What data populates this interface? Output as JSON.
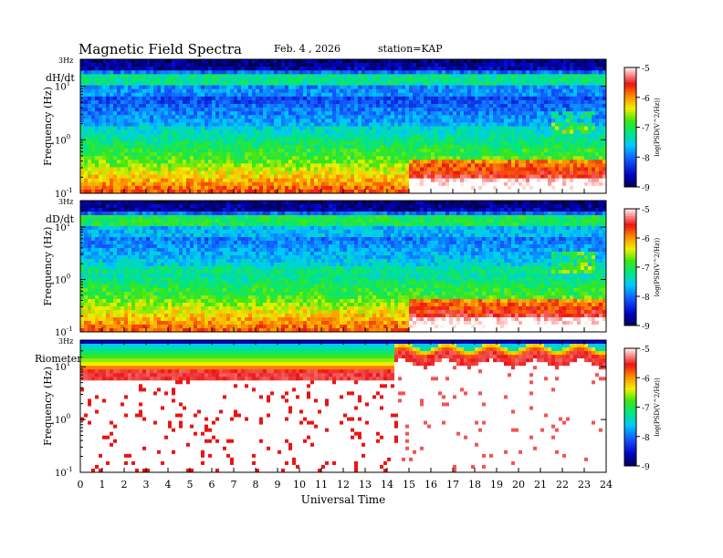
{
  "header": {
    "title": "Magnetic  Field  Spectra",
    "date": "Feb. 4  , 2026",
    "station": "station=KAP"
  },
  "chart_data": [
    {
      "type": "heatmap",
      "panel_label": "dH/dt",
      "ylabel": "Frequency  (Hz)",
      "xlabel": "",
      "top_label": "3Hz",
      "y_ticks": [
        {
          "base": "10",
          "exp": "-1",
          "value": 0.1
        },
        {
          "base": "10",
          "exp": "0",
          "value": 1
        },
        {
          "base": "10",
          "exp": "1",
          "value": 10
        }
      ],
      "ylim": [
        0.1,
        32
      ],
      "y_scale": "log",
      "xlim": [
        0,
        24
      ],
      "colorbar": {
        "label": "log(PSD(V^2/Hz))",
        "ticks": [
          "-5",
          "-6",
          "-7",
          "-8",
          "-9"
        ],
        "range": [
          -9,
          -5
        ]
      }
    },
    {
      "type": "heatmap",
      "panel_label": "dD/dt",
      "ylabel": "Frequency  (Hz)",
      "xlabel": "",
      "top_label": "3Hz",
      "y_ticks": [
        {
          "base": "10",
          "exp": "-1",
          "value": 0.1
        },
        {
          "base": "10",
          "exp": "0",
          "value": 1
        },
        {
          "base": "10",
          "exp": "1",
          "value": 10
        }
      ],
      "ylim": [
        0.1,
        32
      ],
      "y_scale": "log",
      "xlim": [
        0,
        24
      ],
      "colorbar": {
        "label": "log(PSD(V^2/Hz))",
        "ticks": [
          "-5",
          "-6",
          "-7",
          "-8",
          "-9"
        ],
        "range": [
          -9,
          -5
        ]
      }
    },
    {
      "type": "heatmap",
      "panel_label": "Riometer",
      "ylabel": "Frequency  (Hz)",
      "xlabel": "Universal Time",
      "top_label": "3Hz",
      "y_ticks": [
        {
          "base": "10",
          "exp": "-1",
          "value": 0.1
        },
        {
          "base": "10",
          "exp": "0",
          "value": 1
        },
        {
          "base": "10",
          "exp": "1",
          "value": 10
        }
      ],
      "ylim": [
        0.1,
        32
      ],
      "y_scale": "log",
      "xlim": [
        0,
        24
      ],
      "x_ticks": [
        "0",
        "1",
        "2",
        "3",
        "4",
        "5",
        "6",
        "7",
        "8",
        "9",
        "10",
        "11",
        "12",
        "13",
        "14",
        "15",
        "16",
        "17",
        "18",
        "19",
        "20",
        "21",
        "22",
        "23",
        "24"
      ],
      "colorbar": {
        "label": "log(PSD(V^2/Hz))",
        "ticks": [
          "-5",
          "-6",
          "-7",
          "-8",
          "-9"
        ],
        "range": [
          -9,
          -5
        ]
      }
    }
  ]
}
